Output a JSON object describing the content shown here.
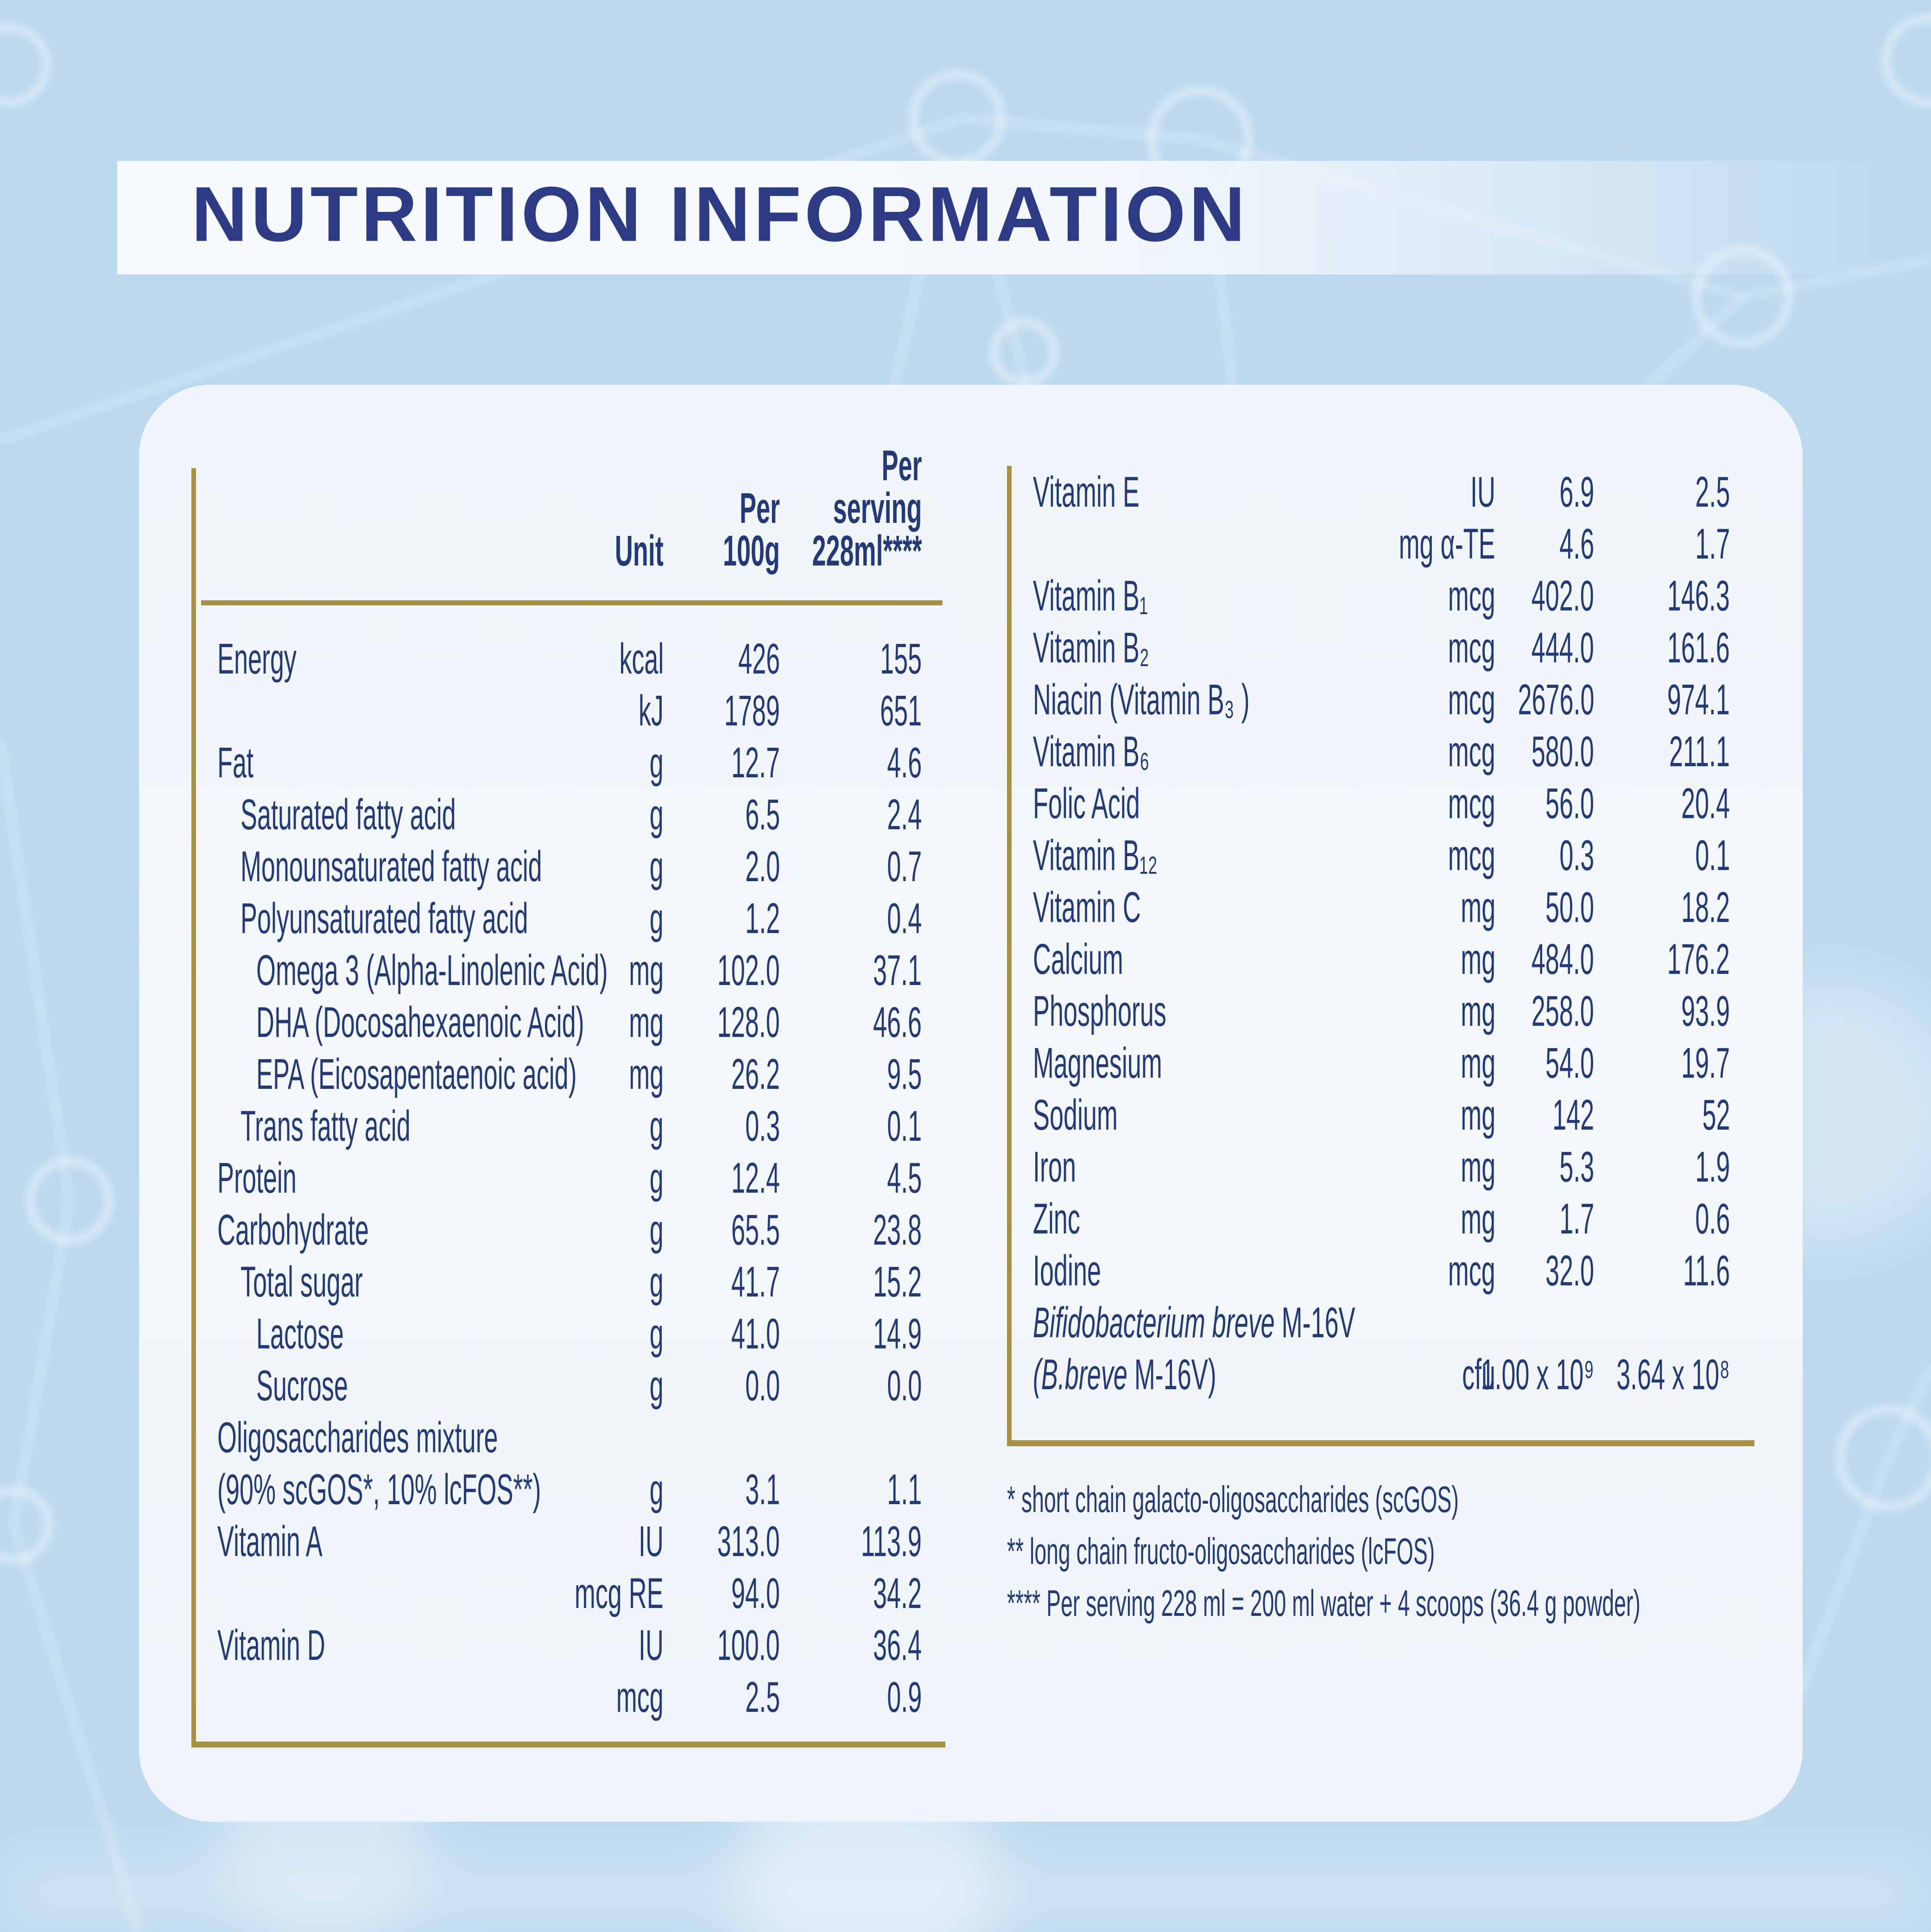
{
  "title": "NUTRITION INFORMATION",
  "colors": {
    "background": "#bcd9ef",
    "card": "#f2f6fb",
    "banner": "#f8fbfe",
    "navy": "#243a76",
    "title": "#2d3b84",
    "gold": "#a8913f"
  },
  "columns": {
    "unit": "Unit",
    "per_100g": "Per\n100g",
    "per_serving": "Per\nserving\n228ml****"
  },
  "left_rows": [
    {
      "label": "Energy",
      "indent": 0,
      "unit": "kcal",
      "per_100g": "426",
      "per_serving": "155"
    },
    {
      "label": "",
      "indent": 0,
      "unit": "kJ",
      "per_100g": "1789",
      "per_serving": "651"
    },
    {
      "label": "Fat",
      "indent": 0,
      "unit": "g",
      "per_100g": "12.7",
      "per_serving": "4.6"
    },
    {
      "label": "Saturated fatty acid",
      "indent": 1,
      "unit": "g",
      "per_100g": "6.5",
      "per_serving": "2.4"
    },
    {
      "label": "Monounsaturated fatty acid",
      "indent": 1,
      "unit": "g",
      "per_100g": "2.0",
      "per_serving": "0.7"
    },
    {
      "label": "Polyunsaturated fatty acid",
      "indent": 1,
      "unit": "g",
      "per_100g": "1.2",
      "per_serving": "0.4"
    },
    {
      "label": "Omega 3 (Alpha-Linolenic Acid)",
      "indent": 2,
      "unit": "mg",
      "per_100g": "102.0",
      "per_serving": "37.1"
    },
    {
      "label": "DHA (Docosahexaenoic Acid)",
      "indent": 2,
      "unit": "mg",
      "per_100g": "128.0",
      "per_serving": "46.6"
    },
    {
      "label": "EPA (Eicosapentaenoic acid)",
      "indent": 2,
      "unit": "mg",
      "per_100g": "26.2",
      "per_serving": "9.5"
    },
    {
      "label": "Trans fatty acid",
      "indent": 1,
      "unit": "g",
      "per_100g": "0.3",
      "per_serving": "0.1"
    },
    {
      "label": "Protein",
      "indent": 0,
      "unit": "g",
      "per_100g": "12.4",
      "per_serving": "4.5"
    },
    {
      "label": "Carbohydrate",
      "indent": 0,
      "unit": "g",
      "per_100g": "65.5",
      "per_serving": "23.8"
    },
    {
      "label": "Total sugar",
      "indent": 1,
      "unit": "g",
      "per_100g": "41.7",
      "per_serving": "15.2"
    },
    {
      "label": "Lactose",
      "indent": 2,
      "unit": "g",
      "per_100g": "41.0",
      "per_serving": "14.9"
    },
    {
      "label": "Sucrose",
      "indent": 2,
      "unit": "g",
      "per_100g": "0.0",
      "per_serving": "0.0"
    },
    {
      "label": "Oligosaccharides mixture",
      "indent": 0,
      "unit": "",
      "per_100g": "",
      "per_serving": ""
    },
    {
      "label": "(90% scGOS*, 10% lcFOS**)",
      "indent": 0,
      "unit": "g",
      "per_100g": "3.1",
      "per_serving": "1.1"
    },
    {
      "label": "Vitamin A",
      "indent": 0,
      "unit": "IU",
      "per_100g": "313.0",
      "per_serving": "113.9"
    },
    {
      "label": "",
      "indent": 0,
      "unit": "mcg RE",
      "per_100g": "94.0",
      "per_serving": "34.2"
    },
    {
      "label": "Vitamin D",
      "indent": 0,
      "unit": "IU",
      "per_100g": "100.0",
      "per_serving": "36.4"
    },
    {
      "label": "",
      "indent": 0,
      "unit": "mcg",
      "per_100g": "2.5",
      "per_serving": "0.9"
    }
  ],
  "right_rows": [
    {
      "label": "Vitamin E",
      "indent": 0,
      "unit": "IU",
      "per_100g": "6.9",
      "per_serving": "2.5"
    },
    {
      "label": "",
      "indent": 0,
      "unit": "mg α-TE",
      "per_100g": "4.6",
      "per_serving": "1.7"
    },
    {
      "label": "Vitamin B₁",
      "indent": 0,
      "unit": "mcg",
      "per_100g": "402.0",
      "per_serving": "146.3"
    },
    {
      "label": "Vitamin B₂",
      "indent": 0,
      "unit": "mcg",
      "per_100g": "444.0",
      "per_serving": "161.6"
    },
    {
      "label": "Niacin (Vitamin B₃ )",
      "indent": 0,
      "unit": "mcg",
      "per_100g": "2676.0",
      "per_serving": "974.1"
    },
    {
      "label": "Vitamin B₆",
      "indent": 0,
      "unit": "mcg",
      "per_100g": "580.0",
      "per_serving": "211.1"
    },
    {
      "label": "Folic Acid",
      "indent": 0,
      "unit": "mcg",
      "per_100g": "56.0",
      "per_serving": "20.4"
    },
    {
      "label": "Vitamin B₁₂",
      "indent": 0,
      "unit": "mcg",
      "per_100g": "0.3",
      "per_serving": "0.1"
    },
    {
      "label": "Vitamin C",
      "indent": 0,
      "unit": "mg",
      "per_100g": "50.0",
      "per_serving": "18.2"
    },
    {
      "label": "Calcium",
      "indent": 0,
      "unit": "mg",
      "per_100g": "484.0",
      "per_serving": "176.2"
    },
    {
      "label": "Phosphorus",
      "indent": 0,
      "unit": "mg",
      "per_100g": "258.0",
      "per_serving": "93.9"
    },
    {
      "label": "Magnesium",
      "indent": 0,
      "unit": "mg",
      "per_100g": "54.0",
      "per_serving": "19.7"
    },
    {
      "label": "Sodium",
      "indent": 0,
      "unit": "mg",
      "per_100g": "142",
      "per_serving": "52"
    },
    {
      "label": "Iron",
      "indent": 0,
      "unit": "mg",
      "per_100g": "5.3",
      "per_serving": "1.9"
    },
    {
      "label": "Zinc",
      "indent": 0,
      "unit": "mg",
      "per_100g": "1.7",
      "per_serving": "0.6"
    },
    {
      "label": "Iodine",
      "indent": 0,
      "unit": "mcg",
      "per_100g": "32.0",
      "per_serving": "11.6"
    },
    {
      "label_italic": "Bifidobacterium breve",
      "label": " M-16V",
      "indent": 0,
      "unit": "",
      "per_100g": "",
      "per_serving": ""
    },
    {
      "label_italic": "(B.breve",
      "label": " M-16V)",
      "indent": 0,
      "unit": "cfu",
      "per_100g": "1.00 x 10⁹",
      "per_serving": "3.64 x 10⁸"
    }
  ],
  "footnotes": [
    "* short chain galacto-oligosaccharides (scGOS)",
    "** long chain fructo-oligosaccharides (lcFOS)",
    "**** Per serving 228 ml = 200 ml water + 4 scoops (36.4 g powder)"
  ]
}
